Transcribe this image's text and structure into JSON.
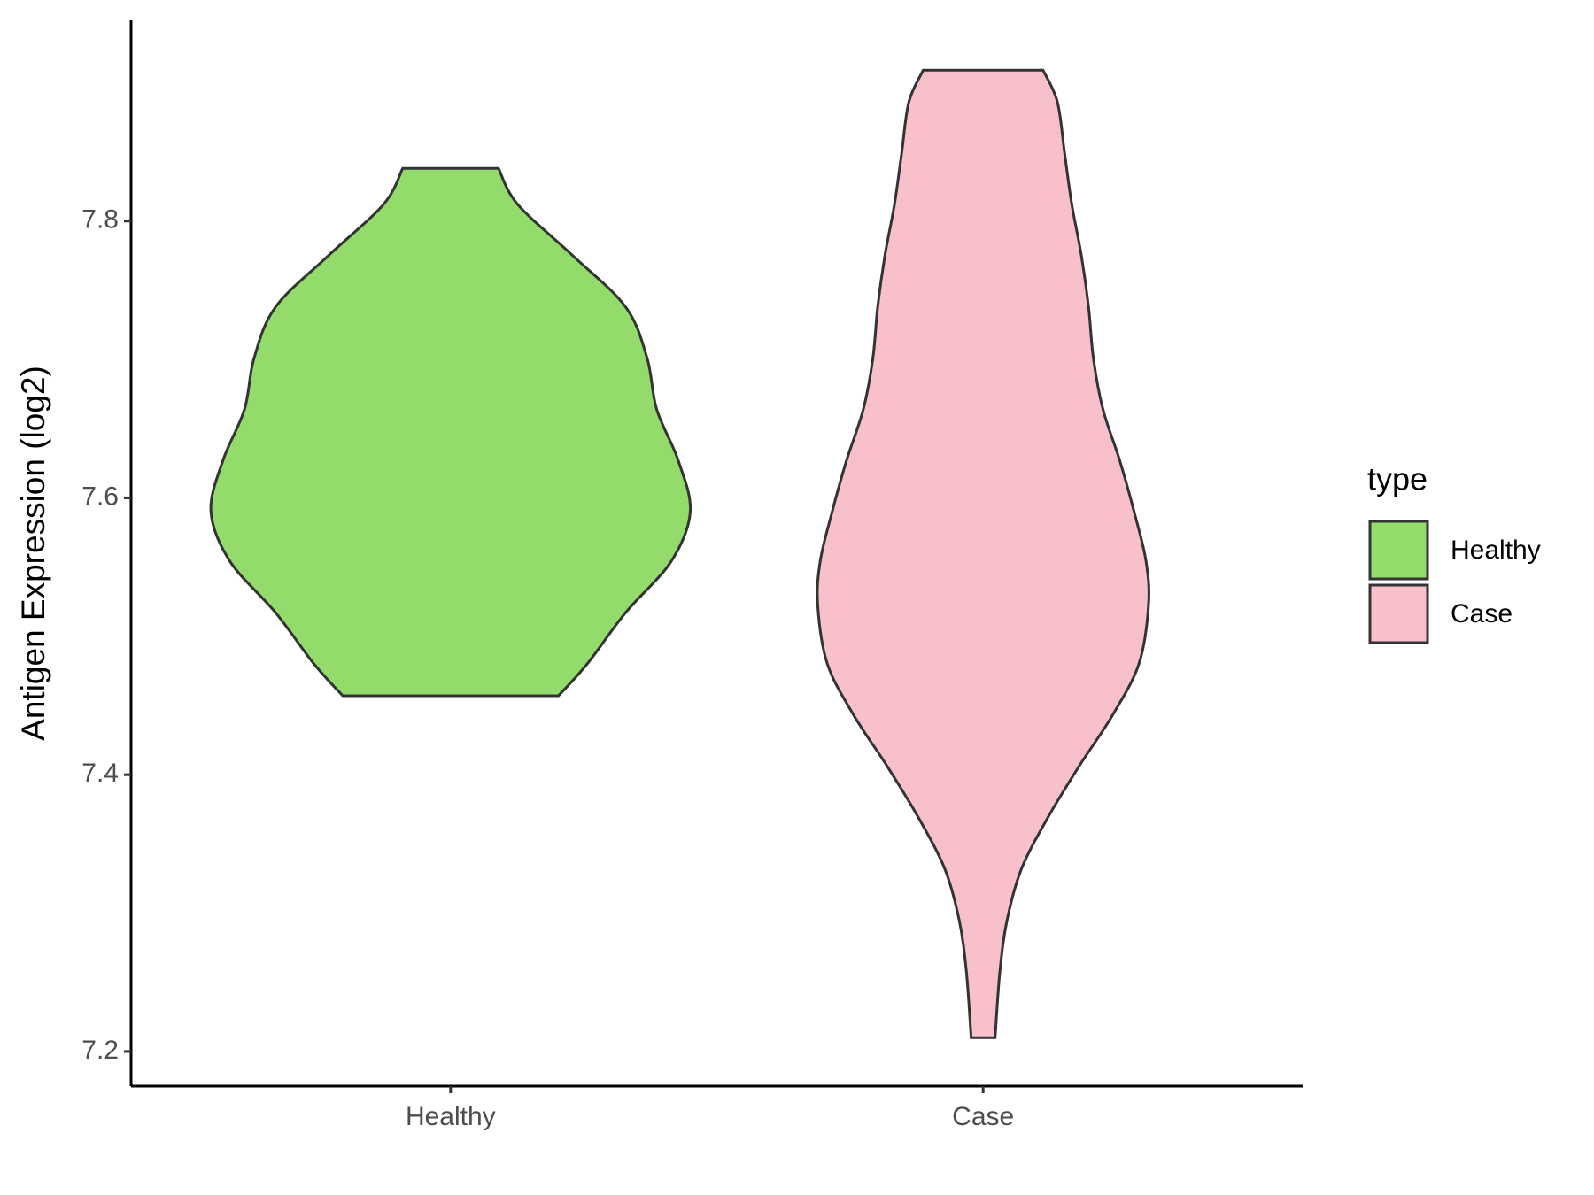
{
  "chart_data": {
    "type": "violin",
    "y_label": "Antigen Expression (log2)",
    "categories": [
      "Healthy",
      "Case"
    ],
    "ylim": [
      7.175,
      7.945
    ],
    "yticks": [
      7.2,
      7.4,
      7.6,
      7.8
    ],
    "legend_title": "type",
    "legend": "right",
    "series": [
      {
        "name": "Healthy",
        "color": "#93DB6A",
        "y": [
          7.838,
          7.812,
          7.775,
          7.738,
          7.701,
          7.664,
          7.627,
          7.59,
          7.554,
          7.517,
          7.48,
          7.457
        ],
        "density": [
          0.2,
          0.28,
          0.51,
          0.73,
          0.82,
          0.86,
          0.95,
          1.0,
          0.92,
          0.73,
          0.57,
          0.45
        ]
      },
      {
        "name": "Case",
        "color": "#F7C0CB",
        "y": [
          7.909,
          7.886,
          7.849,
          7.812,
          7.775,
          7.738,
          7.701,
          7.664,
          7.627,
          7.59,
          7.554,
          7.522,
          7.48,
          7.443,
          7.406,
          7.369,
          7.332,
          7.295,
          7.258,
          7.21
        ],
        "density": [
          0.25,
          0.31,
          0.34,
          0.37,
          0.41,
          0.44,
          0.46,
          0.5,
          0.57,
          0.63,
          0.68,
          0.69,
          0.65,
          0.54,
          0.4,
          0.27,
          0.16,
          0.1,
          0.07,
          0.05
        ]
      }
    ]
  }
}
